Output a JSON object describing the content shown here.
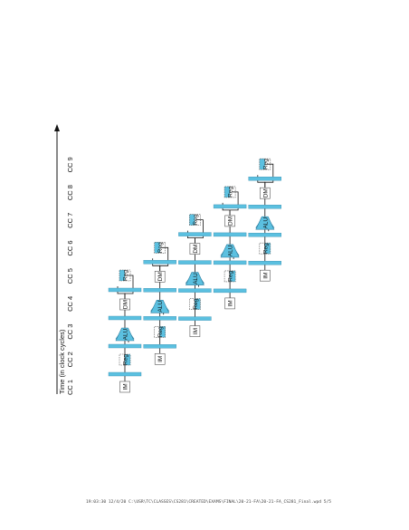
{
  "axis": {
    "title": "Time (in clock cycles)",
    "cycles": [
      "CC 1",
      "CC 2",
      "CC 3",
      "CC 4",
      "CC 5",
      "CC 6",
      "CC 7",
      "CC 8",
      "CC 9"
    ]
  },
  "stage_labels": {
    "im": "IM",
    "reg": "Reg",
    "alu": "ALU",
    "dm": "DM"
  },
  "instruction_count": 5,
  "colors": {
    "pipe": "#5bc0e0",
    "line": "#111111",
    "box_fill": "#ffffff",
    "box_stroke": "#555555"
  },
  "footer": "19:03:30 12/4/20 C:\\USR\\TC\\CLASSES\\CS281\\CREATED\\EXAMS\\FINAL\\20-21-FA\\20-21-FA_CS281_Final.wpd 5/5"
}
